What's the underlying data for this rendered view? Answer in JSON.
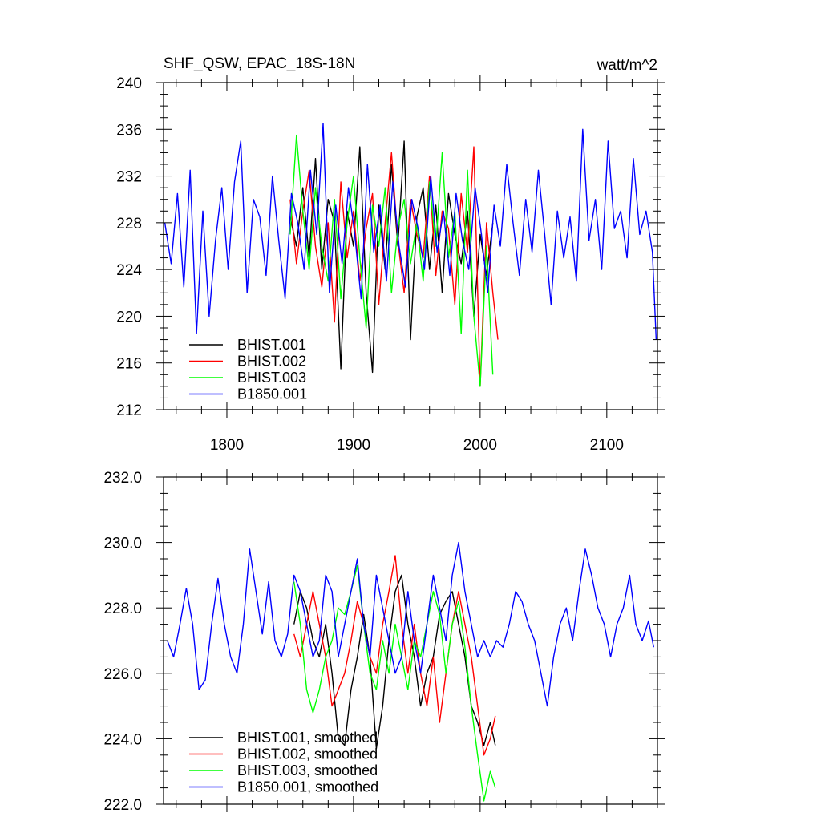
{
  "chart_data": [
    {
      "type": "line",
      "title": "SHF_QSW, EPAC_18S-18N",
      "units": "watt/m^2",
      "xlim": [
        1750,
        2140
      ],
      "ylim": [
        212,
        240
      ],
      "xticks": [
        1800,
        1900,
        2000,
        2100
      ],
      "xtick_labels": [
        "1800",
        "1900",
        "2000",
        "2100"
      ],
      "yticks": [
        212,
        216,
        220,
        224,
        228,
        232,
        236,
        240
      ],
      "ytick_labels": [
        "212",
        "216",
        "220",
        "224",
        "228",
        "232",
        "236",
        "240"
      ],
      "legend_position": "bottom-left",
      "series": [
        {
          "name": "BHIST.001",
          "color": "#000000",
          "x": [
            1850,
            1855,
            1860,
            1865,
            1870,
            1875,
            1880,
            1885,
            1890,
            1895,
            1900,
            1905,
            1910,
            1915,
            1920,
            1925,
            1930,
            1935,
            1940,
            1945,
            1950,
            1955,
            1960,
            1965,
            1970,
            1975,
            1980,
            1985,
            1990,
            1995,
            2000,
            2005,
            2010
          ],
          "values": [
            228.5,
            226.0,
            231.0,
            225.0,
            233.5,
            224.0,
            230.0,
            228.0,
            215.5,
            229.0,
            226.0,
            234.5,
            222.0,
            215.2,
            229.5,
            224.0,
            233.0,
            226.0,
            235.0,
            218.0,
            228.5,
            231.0,
            224.0,
            229.5,
            222.0,
            230.5,
            227.0,
            224.5,
            229.0,
            220.0,
            227.0,
            223.5,
            228.0
          ]
        },
        {
          "name": "BHIST.002",
          "color": "#ff0000",
          "x": [
            1850,
            1855,
            1860,
            1865,
            1870,
            1875,
            1880,
            1885,
            1890,
            1895,
            1900,
            1905,
            1910,
            1915,
            1920,
            1925,
            1930,
            1935,
            1940,
            1945,
            1950,
            1955,
            1960,
            1965,
            1970,
            1975,
            1980,
            1985,
            1990,
            1995,
            2000,
            2005,
            2010,
            2014
          ],
          "values": [
            230.0,
            224.5,
            229.0,
            232.5,
            226.0,
            222.5,
            228.0,
            219.5,
            231.5,
            225.0,
            229.0,
            223.0,
            227.5,
            230.5,
            221.0,
            228.0,
            234.0,
            226.5,
            222.0,
            230.0,
            227.0,
            225.0,
            232.0,
            223.5,
            229.0,
            227.5,
            221.0,
            230.5,
            225.5,
            234.5,
            214.0,
            228.0,
            222.0,
            218.0
          ]
        },
        {
          "name": "BHIST.003",
          "color": "#00ff00",
          "x": [
            1850,
            1855,
            1860,
            1865,
            1870,
            1875,
            1880,
            1885,
            1890,
            1895,
            1900,
            1905,
            1910,
            1915,
            1920,
            1925,
            1930,
            1935,
            1940,
            1945,
            1950,
            1955,
            1960,
            1965,
            1970,
            1975,
            1980,
            1985,
            1990,
            1995,
            2000,
            2005,
            2010
          ],
          "values": [
            227.0,
            235.5,
            229.0,
            224.0,
            231.0,
            226.0,
            223.0,
            230.0,
            221.5,
            228.0,
            232.0,
            225.0,
            219.0,
            229.5,
            226.0,
            231.0,
            222.0,
            227.5,
            230.0,
            224.5,
            228.0,
            223.0,
            231.5,
            226.0,
            234.0,
            225.0,
            229.0,
            218.5,
            232.5,
            220.0,
            214.0,
            226.0,
            215.0
          ]
        },
        {
          "name": "B1850.001",
          "color": "#0000ff",
          "x": [
            1751,
            1756,
            1761,
            1766,
            1771,
            1776,
            1781,
            1786,
            1791,
            1796,
            1801,
            1806,
            1811,
            1816,
            1821,
            1826,
            1831,
            1836,
            1841,
            1846,
            1851,
            1856,
            1861,
            1866,
            1871,
            1876,
            1881,
            1886,
            1891,
            1896,
            1901,
            1906,
            1911,
            1916,
            1921,
            1926,
            1931,
            1936,
            1941,
            1946,
            1951,
            1956,
            1961,
            1966,
            1971,
            1976,
            1981,
            1986,
            1991,
            1996,
            2001,
            2006,
            2011,
            2016,
            2021,
            2026,
            2031,
            2036,
            2041,
            2046,
            2051,
            2056,
            2061,
            2066,
            2071,
            2076,
            2081,
            2086,
            2091,
            2096,
            2101,
            2106,
            2111,
            2116,
            2121,
            2126,
            2131,
            2136,
            2139
          ],
          "values": [
            228.0,
            224.5,
            230.5,
            222.5,
            232.5,
            218.5,
            229.0,
            220.0,
            226.5,
            231.0,
            224.0,
            231.5,
            235.0,
            222.0,
            230.0,
            228.5,
            223.5,
            232.0,
            226.5,
            221.5,
            230.5,
            228.0,
            224.0,
            232.5,
            227.0,
            236.5,
            222.0,
            229.5,
            224.5,
            231.0,
            227.0,
            221.5,
            233.0,
            225.5,
            229.5,
            223.0,
            231.5,
            226.0,
            222.5,
            230.0,
            227.5,
            224.0,
            232.0,
            225.5,
            229.0,
            223.5,
            230.5,
            226.5,
            224.0,
            231.0,
            227.0,
            222.0,
            229.5,
            226.0,
            233.0,
            228.0,
            223.5,
            230.0,
            225.5,
            232.5,
            227.0,
            221.0,
            229.0,
            225.0,
            228.5,
            223.0,
            236.0,
            226.5,
            230.0,
            224.0,
            235.0,
            227.5,
            229.0,
            225.0,
            233.5,
            227.0,
            229.0,
            225.5,
            218.0
          ]
        }
      ]
    },
    {
      "type": "line",
      "xlim": [
        1750,
        2140
      ],
      "ylim": [
        222.0,
        232.0
      ],
      "xticks": [
        1800,
        1900,
        2000,
        2100
      ],
      "yticks": [
        222.0,
        224.0,
        226.0,
        228.0,
        230.0,
        232.0
      ],
      "ytick_labels": [
        "222.0",
        "224.0",
        "226.0",
        "228.0",
        "230.0",
        "232.0"
      ],
      "legend_position": "bottom-left",
      "series": [
        {
          "name": "BHIST.001, smoothed",
          "color": "#000000",
          "x": [
            1853,
            1858,
            1863,
            1868,
            1873,
            1878,
            1883,
            1888,
            1893,
            1898,
            1903,
            1908,
            1913,
            1918,
            1923,
            1928,
            1933,
            1938,
            1943,
            1948,
            1953,
            1958,
            1963,
            1968,
            1973,
            1978,
            1983,
            1988,
            1993,
            1998,
            2003,
            2008,
            2012
          ],
          "values": [
            227.5,
            228.5,
            228.0,
            227.0,
            226.5,
            227.5,
            226.0,
            224.0,
            223.8,
            225.5,
            226.5,
            227.8,
            226.5,
            223.7,
            225.0,
            227.0,
            228.5,
            229.0,
            227.5,
            226.5,
            225.0,
            226.0,
            226.5,
            227.8,
            228.2,
            228.5,
            227.5,
            226.5,
            225.0,
            224.5,
            223.8,
            224.5,
            223.8
          ]
        },
        {
          "name": "BHIST.002, smoothed",
          "color": "#ff0000",
          "x": [
            1853,
            1858,
            1863,
            1868,
            1873,
            1878,
            1883,
            1888,
            1893,
            1898,
            1903,
            1908,
            1913,
            1918,
            1923,
            1928,
            1933,
            1938,
            1943,
            1948,
            1953,
            1958,
            1963,
            1968,
            1973,
            1978,
            1983,
            1988,
            1993,
            1998,
            2003,
            2008,
            2012
          ],
          "values": [
            227.2,
            226.5,
            227.5,
            228.5,
            227.5,
            226.5,
            225.0,
            225.5,
            226.0,
            227.0,
            228.2,
            227.5,
            226.5,
            226.0,
            227.5,
            228.5,
            229.6,
            227.5,
            226.0,
            227.5,
            226.0,
            225.0,
            226.5,
            224.5,
            226.0,
            227.5,
            228.5,
            227.5,
            226.5,
            225.0,
            223.5,
            224.0,
            224.7
          ]
        },
        {
          "name": "BHIST.003, smoothed",
          "color": "#00ff00",
          "x": [
            1853,
            1858,
            1863,
            1868,
            1873,
            1878,
            1883,
            1888,
            1893,
            1898,
            1903,
            1908,
            1913,
            1918,
            1923,
            1928,
            1933,
            1938,
            1943,
            1948,
            1953,
            1958,
            1963,
            1968,
            1973,
            1978,
            1983,
            1988,
            1993,
            1998,
            2003,
            2008,
            2012
          ],
          "values": [
            228.8,
            227.5,
            225.5,
            224.8,
            225.5,
            226.5,
            227.0,
            228.0,
            227.8,
            228.5,
            229.3,
            227.5,
            226.0,
            225.5,
            227.0,
            226.0,
            227.5,
            226.5,
            225.5,
            227.0,
            226.5,
            227.5,
            228.5,
            227.8,
            226.0,
            227.5,
            228.2,
            226.8,
            225.0,
            223.5,
            222.1,
            223.0,
            222.5
          ]
        },
        {
          "name": "B1850.001, smoothed",
          "color": "#0000ff",
          "x": [
            1753,
            1758,
            1763,
            1768,
            1773,
            1778,
            1783,
            1788,
            1793,
            1798,
            1803,
            1808,
            1813,
            1818,
            1823,
            1828,
            1833,
            1838,
            1843,
            1848,
            1853,
            1858,
            1863,
            1868,
            1873,
            1878,
            1883,
            1888,
            1893,
            1898,
            1903,
            1908,
            1913,
            1918,
            1923,
            1928,
            1933,
            1938,
            1943,
            1948,
            1953,
            1958,
            1963,
            1968,
            1973,
            1978,
            1983,
            1988,
            1993,
            1998,
            2003,
            2008,
            2013,
            2018,
            2023,
            2028,
            2033,
            2038,
            2043,
            2048,
            2053,
            2058,
            2063,
            2068,
            2073,
            2078,
            2083,
            2088,
            2093,
            2098,
            2103,
            2108,
            2113,
            2118,
            2123,
            2128,
            2133,
            2137
          ],
          "values": [
            227.0,
            226.5,
            227.5,
            228.6,
            227.5,
            225.5,
            225.8,
            227.5,
            228.9,
            227.5,
            226.5,
            226.0,
            227.5,
            229.8,
            228.5,
            227.2,
            228.8,
            227.0,
            226.5,
            227.2,
            229.0,
            228.5,
            227.5,
            226.5,
            227.0,
            229.0,
            228.5,
            226.5,
            227.5,
            228.5,
            229.5,
            227.5,
            226.5,
            229.0,
            228.0,
            227.0,
            226.0,
            226.5,
            228.5,
            227.0,
            226.0,
            227.5,
            229.0,
            228.0,
            227.0,
            229.0,
            230.0,
            228.5,
            227.5,
            226.5,
            227.0,
            226.5,
            227.0,
            226.8,
            227.5,
            228.5,
            228.2,
            227.5,
            227.0,
            226.0,
            225.0,
            226.5,
            227.5,
            228.0,
            227.0,
            228.5,
            229.8,
            229.0,
            228.0,
            227.5,
            226.5,
            227.5,
            228.0,
            229.0,
            227.5,
            227.0,
            227.6,
            226.8
          ]
        }
      ]
    }
  ]
}
